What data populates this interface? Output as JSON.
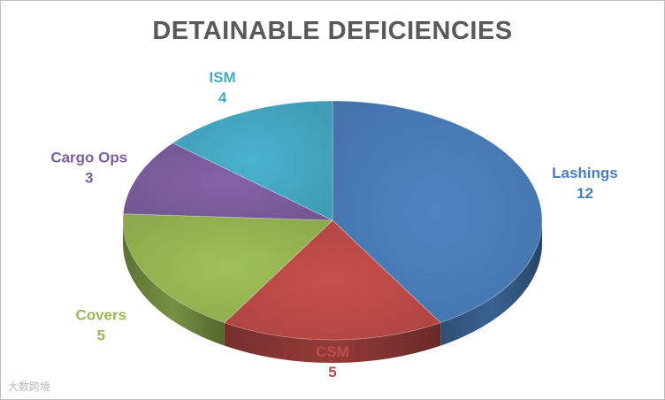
{
  "chart_data": {
    "type": "pie",
    "title": "DETAINABLE DEFICIENCIES",
    "categories": [
      "Lashings",
      "CSM",
      "Covers",
      "Cargo Ops",
      "ISM"
    ],
    "values": [
      12,
      5,
      5,
      3,
      4
    ],
    "colors": [
      "#4a7ebb",
      "#be4b48",
      "#98b954",
      "#7d5fa0",
      "#46aac5"
    ],
    "label_colors": [
      "#4a7ebb",
      "#be4b48",
      "#98b954",
      "#7d5fa0",
      "#46aac5"
    ],
    "style": "3d",
    "legend": "none",
    "data_labels": "category and value"
  },
  "colors": {
    "title": "#595959",
    "background": "#ffffff"
  },
  "watermark": "大数跨境"
}
